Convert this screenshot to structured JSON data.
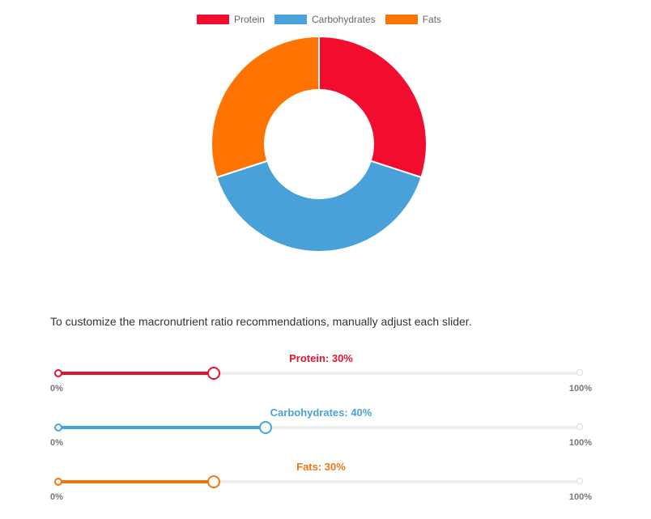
{
  "chart_data": {
    "type": "doughnut",
    "title": "",
    "legend_position": "top",
    "categories": [
      "Protein",
      "Carbohydrates",
      "Fats"
    ],
    "values": [
      30,
      40,
      30
    ],
    "colors": [
      "#f20d2f",
      "#48a2d9",
      "#ff7300"
    ]
  },
  "instruction": "To customize the macronutrient ratio recommendations, manually adjust each slider.",
  "sliders": [
    {
      "label": "Protein: 30%",
      "value": 30,
      "color": "#e0142f",
      "min_label": "0%",
      "max_label": "100%"
    },
    {
      "label": "Carbohydrates: 40%",
      "value": 40,
      "color": "#4ba2d6",
      "min_label": "0%",
      "max_label": "100%"
    },
    {
      "label": "Fats: 30%",
      "value": 30,
      "color": "#f0750f",
      "min_label": "0%",
      "max_label": "100%"
    }
  ]
}
